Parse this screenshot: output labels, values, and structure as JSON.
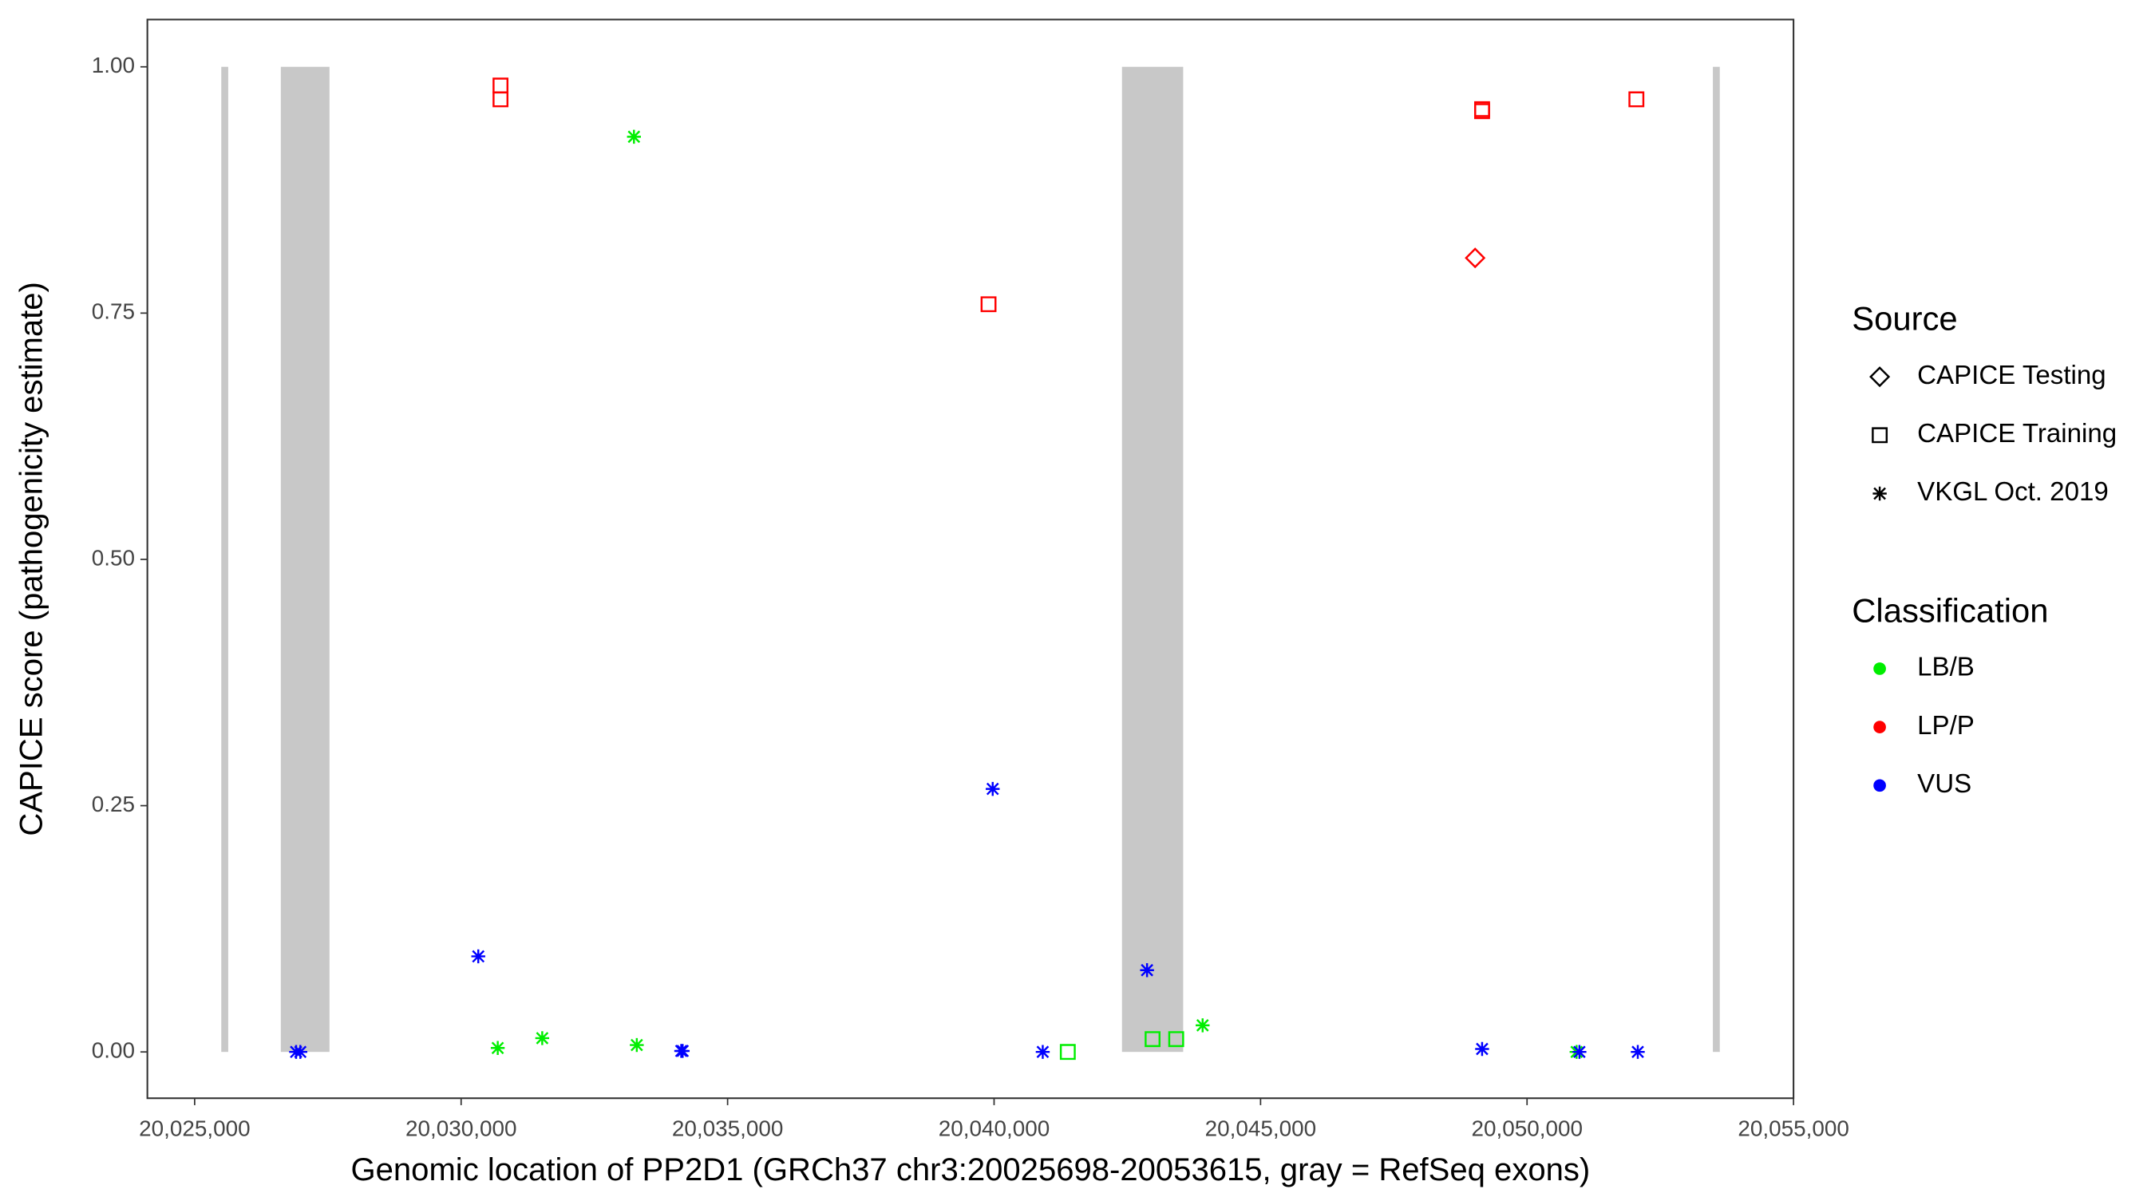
{
  "chart_data": {
    "type": "scatter",
    "x_label": "Genomic location of PP2D1 (GRCh37 chr3:20025698-20053615, gray = RefSeq exons)",
    "y_label": "CAPICE score (pathogenicity estimate)",
    "xlim": [
      20024113,
      20055000
    ],
    "ylim": [
      -0.047,
      1.048
    ],
    "xticks": [
      {
        "value": 20025000,
        "label": "20,025,000"
      },
      {
        "value": 20030000,
        "label": "20,030,000"
      },
      {
        "value": 20035000,
        "label": "20,035,000"
      },
      {
        "value": 20040000,
        "label": "20,040,000"
      },
      {
        "value": 20045000,
        "label": "20,045,000"
      },
      {
        "value": 20050000,
        "label": "20,050,000"
      },
      {
        "value": 20055000,
        "label": "20,055,000"
      }
    ],
    "yticks": [
      {
        "value": 0,
        "label": "0.00"
      },
      {
        "value": 0.25,
        "label": "0.25"
      },
      {
        "value": 0.5,
        "label": "0.50"
      },
      {
        "value": 0.75,
        "label": "0.75"
      },
      {
        "value": 1,
        "label": "1.00"
      }
    ],
    "exons": [
      [
        20025500,
        20025630
      ],
      [
        20026617,
        20027530
      ],
      [
        20042400,
        20043548
      ],
      [
        20053487,
        20053617
      ]
    ],
    "exon_color": "#c8c8c8",
    "shape_legend": {
      "title": "Source",
      "items": [
        {
          "name": "CAPICE Testing",
          "shape": "diamond"
        },
        {
          "name": "CAPICE Training",
          "shape": "square"
        },
        {
          "name": "VKGL Oct. 2019",
          "shape": "asterisk"
        }
      ]
    },
    "color_legend": {
      "title": "Classification",
      "items": [
        {
          "name": "LB/B",
          "color": "#00ee00"
        },
        {
          "name": "LP/P",
          "color": "#ff0000"
        },
        {
          "name": "VUS",
          "color": "#0000ff"
        }
      ]
    },
    "points": [
      {
        "x": 20030739,
        "y": 0.981,
        "source": "CAPICE Training",
        "classification": "LP/P"
      },
      {
        "x": 20030739,
        "y": 0.967,
        "source": "CAPICE Training",
        "classification": "LP/P"
      },
      {
        "x": 20039896,
        "y": 0.759,
        "source": "CAPICE Training",
        "classification": "LP/P"
      },
      {
        "x": 20049157,
        "y": 0.957,
        "source": "CAPICE Training",
        "classification": "LP/P"
      },
      {
        "x": 20049157,
        "y": 0.955,
        "source": "CAPICE Training",
        "classification": "LP/P"
      },
      {
        "x": 20052052,
        "y": 0.967,
        "source": "CAPICE Training",
        "classification": "LP/P"
      },
      {
        "x": 20049026,
        "y": 0.806,
        "source": "CAPICE Testing",
        "classification": "LP/P"
      },
      {
        "x": 20033243,
        "y": 0.929,
        "source": "VKGL Oct. 2019",
        "classification": "LB/B"
      },
      {
        "x": 20030687,
        "y": 0.004,
        "source": "VKGL Oct. 2019",
        "classification": "LB/B"
      },
      {
        "x": 20031522,
        "y": 0.014,
        "source": "VKGL Oct. 2019",
        "classification": "LB/B"
      },
      {
        "x": 20033296,
        "y": 0.007,
        "source": "VKGL Oct. 2019",
        "classification": "LB/B"
      },
      {
        "x": 20043913,
        "y": 0.027,
        "source": "VKGL Oct. 2019",
        "classification": "LB/B"
      },
      {
        "x": 20050930,
        "y": 0,
        "source": "VKGL Oct. 2019",
        "classification": "LB/B"
      },
      {
        "x": 20041383,
        "y": 0,
        "source": "CAPICE Training",
        "classification": "LB/B"
      },
      {
        "x": 20042974,
        "y": 0.013,
        "source": "CAPICE Training",
        "classification": "LB/B"
      },
      {
        "x": 20043417,
        "y": 0.013,
        "source": "CAPICE Training",
        "classification": "LB/B"
      },
      {
        "x": 20026904,
        "y": 0,
        "source": "VKGL Oct. 2019",
        "classification": "VUS"
      },
      {
        "x": 20026983,
        "y": 0,
        "source": "VKGL Oct. 2019",
        "classification": "VUS"
      },
      {
        "x": 20030322,
        "y": 0.097,
        "source": "VKGL Oct. 2019",
        "classification": "VUS"
      },
      {
        "x": 20034157,
        "y": 0.001,
        "source": "VKGL Oct. 2019",
        "classification": "VUS"
      },
      {
        "x": 20034130,
        "y": 0.001,
        "source": "VKGL Oct. 2019",
        "classification": "VUS"
      },
      {
        "x": 20039974,
        "y": 0.267,
        "source": "VKGL Oct. 2019",
        "classification": "VUS"
      },
      {
        "x": 20040913,
        "y": 0,
        "source": "VKGL Oct. 2019",
        "classification": "VUS"
      },
      {
        "x": 20042870,
        "y": 0.083,
        "source": "VKGL Oct. 2019",
        "classification": "VUS"
      },
      {
        "x": 20049157,
        "y": 0.003,
        "source": "VKGL Oct. 2019",
        "classification": "VUS"
      },
      {
        "x": 20050983,
        "y": 0,
        "source": "VKGL Oct. 2019",
        "classification": "VUS"
      },
      {
        "x": 20052078,
        "y": 0,
        "source": "VKGL Oct. 2019",
        "classification": "VUS"
      }
    ]
  }
}
